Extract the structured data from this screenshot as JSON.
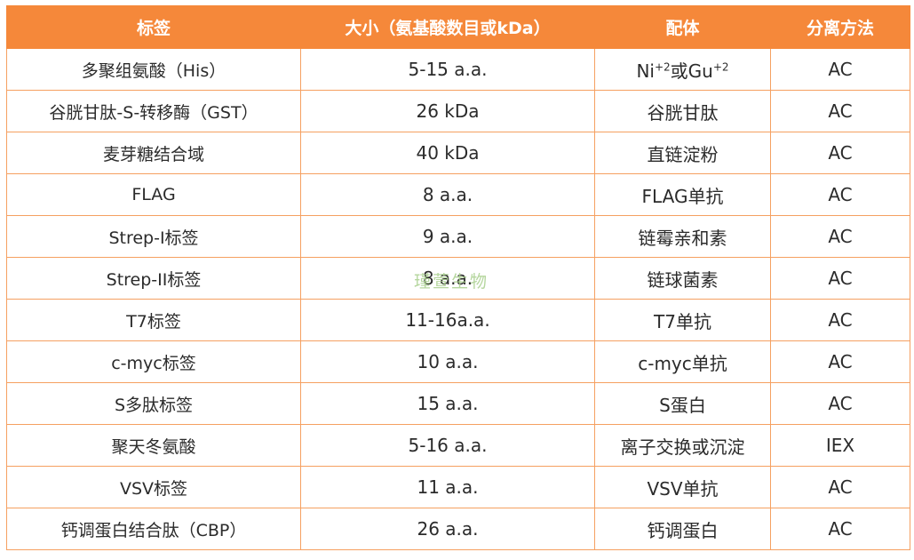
{
  "watermark": "瑾萱生物",
  "colors": {
    "header_bg": "#f5883a",
    "header_text": "#ffffff",
    "border": "#f5a061",
    "body_text": "#2b2b2b",
    "watermark": "#a9d08e"
  },
  "table": {
    "headers": [
      "标签",
      "大小（氨基酸数目或kDa）",
      "配体",
      "分离方法"
    ],
    "rows": [
      {
        "tag": "多聚组氨酸（His）",
        "size": "5-15 a.a.",
        "ligand": "Ni+2或Gu+2",
        "ligand_parts": {
          "a": "Ni",
          "a_sup": "+2",
          "b": "或Gu",
          "b_sup": "+2"
        },
        "method": "AC"
      },
      {
        "tag": "谷胱甘肽-S-转移酶（GST）",
        "size": "26 kDa",
        "ligand": "谷胱甘肽",
        "method": "AC"
      },
      {
        "tag": "麦芽糖结合域",
        "size": "40 kDa",
        "ligand": "直链淀粉",
        "method": "AC"
      },
      {
        "tag": "FLAG",
        "size": "8 a.a.",
        "ligand": "FLAG单抗",
        "method": "AC"
      },
      {
        "tag": "Strep-I标签",
        "size": "9 a.a.",
        "ligand": "链霉亲和素",
        "method": "AC"
      },
      {
        "tag": "Strep-II标签",
        "size": "8 a.a.",
        "ligand": "链球菌素",
        "method": "AC"
      },
      {
        "tag": "T7标签",
        "size": "11-16a.a.",
        "ligand": "T7单抗",
        "method": "AC"
      },
      {
        "tag": "c-myc标签",
        "size": "10 a.a.",
        "ligand": "c-myc单抗",
        "method": "AC"
      },
      {
        "tag": "S多肽标签",
        "size": "15 a.a.",
        "ligand": "S蛋白",
        "method": "AC"
      },
      {
        "tag": "聚天冬氨酸",
        "size": "5-16 a.a.",
        "ligand": "离子交换或沉淀",
        "method": "IEX"
      },
      {
        "tag": "VSV标签",
        "size": "11 a.a.",
        "ligand": "VSV单抗",
        "method": "AC"
      },
      {
        "tag": "钙调蛋白结合肽（CBP）",
        "size": "26 a.a.",
        "ligand": "钙调蛋白",
        "method": "AC"
      }
    ]
  }
}
